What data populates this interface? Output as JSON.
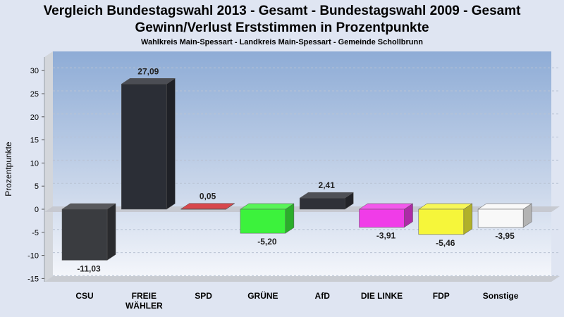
{
  "chart_data": {
    "type": "bar",
    "title": "Vergleich Bundestagswahl 2013 - Gesamt - Bundestagswahl 2009 - Gesamt",
    "title_line2": "Gewinn/Verlust Erststimmen in Prozentpunkte",
    "subtitle": "Wahlkreis Main-Spessart - Landkreis Main-Spessart - Gemeinde Schollbrunn",
    "ylabel": "Prozentpunkte",
    "ylim": [
      -15,
      30
    ],
    "yticks": [
      30,
      25,
      20,
      15,
      10,
      5,
      0,
      -5,
      -10,
      -15
    ],
    "grid": true,
    "categories": [
      "CSU",
      "FREIE WÄHLER",
      "SPD",
      "GRÜNE",
      "AfD",
      "DIE LINKE",
      "FDP",
      "Sonstige"
    ],
    "values": [
      -11.03,
      27.09,
      0.05,
      -5.2,
      2.41,
      -3.91,
      -5.46,
      -3.95
    ],
    "value_labels": [
      "-11,03",
      "27,09",
      "0,05",
      "-5,20",
      "2,41",
      "-3,91",
      "-5,46",
      "-3,95"
    ],
    "colors": [
      "#3a3c40",
      "#2b2e36",
      "#d0262c",
      "#3cf23c",
      "#2f3138",
      "#f03ce8",
      "#f6f63a",
      "#f8f8f8"
    ]
  }
}
